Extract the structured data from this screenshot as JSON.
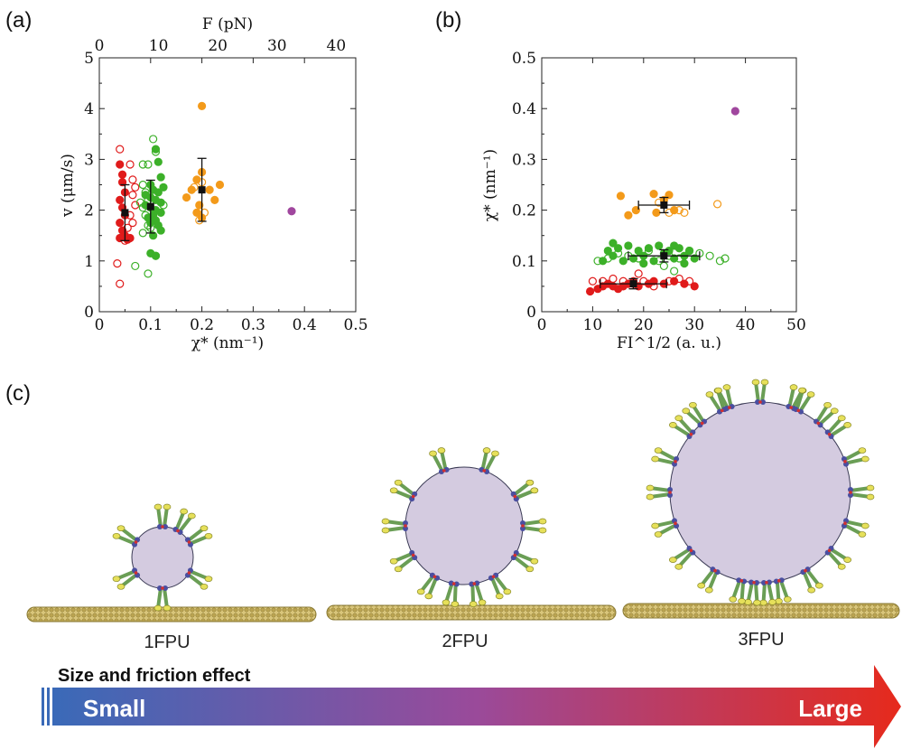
{
  "panels": {
    "a_label": "(a)",
    "b_label": "(b)",
    "c_label": "(c)"
  },
  "chart_data": [
    {
      "type": "scatter",
      "panel": "(a)",
      "xlabel": "χ* (nm⁻¹)",
      "ylabel": "v (μm/s)",
      "top_xlabel": "F (pN)",
      "xlim": [
        0,
        0.5
      ],
      "ylim": [
        0,
        5
      ],
      "top_xlim": [
        0,
        43.3
      ],
      "x_ticks": [
        "0",
        "0.1",
        "0.2",
        "0.3",
        "0.4",
        "0.5"
      ],
      "y_ticks": [
        "0",
        "1",
        "2",
        "3",
        "4",
        "5"
      ],
      "top_x_ticks": [
        "0",
        "10",
        "20",
        "30",
        "40"
      ],
      "series": [
        {
          "color": "#e01b1b",
          "filled": true,
          "points": [
            [
              0.04,
              2.9
            ],
            [
              0.045,
              2.55
            ],
            [
              0.05,
              2.35
            ],
            [
              0.04,
              2.2
            ],
            [
              0.045,
              2.05
            ],
            [
              0.05,
              1.9
            ],
            [
              0.04,
              1.75
            ],
            [
              0.045,
              1.6
            ],
            [
              0.05,
              1.5
            ],
            [
              0.04,
              1.45
            ],
            [
              0.055,
              1.42
            ],
            [
              0.06,
              1.45
            ],
            [
              0.045,
              2.7
            ]
          ]
        },
        {
          "color": "#e01b1b",
          "filled": false,
          "points": [
            [
              0.04,
              3.2
            ],
            [
              0.035,
              0.95
            ],
            [
              0.04,
              0.55
            ],
            [
              0.06,
              2.9
            ],
            [
              0.065,
              2.6
            ],
            [
              0.07,
              2.45
            ],
            [
              0.065,
              2.3
            ],
            [
              0.07,
              2.1
            ],
            [
              0.06,
              1.9
            ],
            [
              0.065,
              1.75
            ],
            [
              0.055,
              1.65
            ],
            [
              0.05,
              1.4
            ]
          ]
        },
        {
          "color": "#3cb029",
          "filled": true,
          "points": [
            [
              0.11,
              3.2
            ],
            [
              0.115,
              2.95
            ],
            [
              0.12,
              2.65
            ],
            [
              0.1,
              2.5
            ],
            [
              0.105,
              2.4
            ],
            [
              0.115,
              2.35
            ],
            [
              0.1,
              2.25
            ],
            [
              0.11,
              2.2
            ],
            [
              0.12,
              2.15
            ],
            [
              0.09,
              2.1
            ],
            [
              0.1,
              2.05
            ],
            [
              0.11,
              2.0
            ],
            [
              0.12,
              1.95
            ],
            [
              0.105,
              1.9
            ],
            [
              0.095,
              1.85
            ],
            [
              0.11,
              1.8
            ],
            [
              0.1,
              1.75
            ],
            [
              0.115,
              1.7
            ],
            [
              0.12,
              1.6
            ],
            [
              0.105,
              1.5
            ],
            [
              0.1,
              1.15
            ],
            [
              0.11,
              1.1
            ],
            [
              0.125,
              2.45
            ],
            [
              0.09,
              2.3
            ]
          ]
        },
        {
          "color": "#3cb029",
          "filled": false,
          "points": [
            [
              0.105,
              3.4
            ],
            [
              0.11,
              3.15
            ],
            [
              0.085,
              2.9
            ],
            [
              0.095,
              2.9
            ],
            [
              0.085,
              2.5
            ],
            [
              0.09,
              2.35
            ],
            [
              0.095,
              2.2
            ],
            [
              0.085,
              2.05
            ],
            [
              0.09,
              1.9
            ],
            [
              0.095,
              1.7
            ],
            [
              0.1,
              1.65
            ],
            [
              0.085,
              1.55
            ],
            [
              0.07,
              0.9
            ],
            [
              0.095,
              0.75
            ],
            [
              0.11,
              1.1
            ],
            [
              0.08,
              2.15
            ],
            [
              0.125,
              2.1
            ]
          ]
        },
        {
          "color": "#f39a1a",
          "filled": true,
          "points": [
            [
              0.2,
              4.05
            ],
            [
              0.2,
              2.75
            ],
            [
              0.19,
              2.6
            ],
            [
              0.235,
              2.5
            ],
            [
              0.18,
              2.4
            ],
            [
              0.215,
              2.4
            ],
            [
              0.17,
              2.25
            ],
            [
              0.225,
              2.2
            ],
            [
              0.195,
              2.1
            ],
            [
              0.19,
              1.95
            ],
            [
              0.2,
              1.85
            ]
          ]
        },
        {
          "color": "#f39a1a",
          "filled": false,
          "points": [
            [
              0.2,
              2.55
            ],
            [
              0.185,
              2.45
            ],
            [
              0.195,
              1.8
            ],
            [
              0.205,
              1.95
            ]
          ]
        },
        {
          "color": "#a0479e",
          "filled": true,
          "points": [
            [
              0.375,
              1.98
            ]
          ]
        }
      ],
      "means": [
        {
          "x": 0.05,
          "y": 1.95,
          "yerr": 0.55
        },
        {
          "x": 0.1,
          "y": 2.07,
          "yerr": 0.52
        },
        {
          "x": 0.2,
          "y": 2.4,
          "yerr": 0.62
        }
      ]
    },
    {
      "type": "scatter",
      "panel": "(b)",
      "xlabel": "FI^1/2 (a. u.)",
      "ylabel": "χ* (nm⁻¹)",
      "xlim": [
        0,
        50
      ],
      "ylim": [
        0,
        0.5
      ],
      "x_ticks": [
        "0",
        "10",
        "20",
        "30",
        "40",
        "50"
      ],
      "y_ticks": [
        "0",
        "0.1",
        "0.2",
        "0.3",
        "0.4",
        "0.5"
      ],
      "series": [
        {
          "color": "#e01b1b",
          "filled": true,
          "points": [
            [
              9.5,
              0.04
            ],
            [
              11,
              0.045
            ],
            [
              12,
              0.05
            ],
            [
              13,
              0.055
            ],
            [
              14,
              0.05
            ],
            [
              15,
              0.045
            ],
            [
              16,
              0.05
            ],
            [
              17,
              0.055
            ],
            [
              18,
              0.06
            ],
            [
              19,
              0.05
            ],
            [
              21,
              0.055
            ],
            [
              22,
              0.06
            ],
            [
              24,
              0.055
            ],
            [
              26,
              0.06
            ],
            [
              28,
              0.055
            ],
            [
              30,
              0.05
            ]
          ]
        },
        {
          "color": "#e01b1b",
          "filled": false,
          "points": [
            [
              10,
              0.06
            ],
            [
              12,
              0.06
            ],
            [
              14,
              0.065
            ],
            [
              16,
              0.06
            ],
            [
              18,
              0.055
            ],
            [
              19,
              0.075
            ],
            [
              20,
              0.06
            ],
            [
              22,
              0.05
            ],
            [
              25,
              0.06
            ],
            [
              27,
              0.065
            ],
            [
              29,
              0.06
            ]
          ]
        },
        {
          "color": "#3cb029",
          "filled": true,
          "points": [
            [
              12,
              0.1
            ],
            [
              13,
              0.12
            ],
            [
              14,
              0.11
            ],
            [
              15,
              0.125
            ],
            [
              16,
              0.1
            ],
            [
              17,
              0.13
            ],
            [
              18,
              0.105
            ],
            [
              19,
              0.12
            ],
            [
              20,
              0.11
            ],
            [
              21,
              0.125
            ],
            [
              22,
              0.1
            ],
            [
              23,
              0.13
            ],
            [
              24,
              0.115
            ],
            [
              25,
              0.12
            ],
            [
              26,
              0.105
            ],
            [
              27,
              0.125
            ],
            [
              28,
              0.11
            ],
            [
              29,
              0.12
            ],
            [
              30,
              0.105
            ],
            [
              14,
              0.135
            ],
            [
              26,
              0.13
            ],
            [
              20,
              0.095
            ],
            [
              28,
              0.095
            ]
          ]
        },
        {
          "color": "#3cb029",
          "filled": false,
          "points": [
            [
              11,
              0.1
            ],
            [
              13,
              0.105
            ],
            [
              15,
              0.115
            ],
            [
              17,
              0.11
            ],
            [
              19,
              0.105
            ],
            [
              21,
              0.12
            ],
            [
              23,
              0.1
            ],
            [
              25,
              0.11
            ],
            [
              27,
              0.105
            ],
            [
              29,
              0.12
            ],
            [
              31,
              0.115
            ],
            [
              33,
              0.11
            ],
            [
              35,
              0.1
            ],
            [
              36,
              0.105
            ],
            [
              26,
              0.08
            ],
            [
              24,
              0.09
            ]
          ]
        },
        {
          "color": "#f39a1a",
          "filled": true,
          "points": [
            [
              15.5,
              0.228
            ],
            [
              17,
              0.19
            ],
            [
              18.5,
              0.2
            ],
            [
              22,
              0.232
            ],
            [
              24,
              0.22
            ],
            [
              25,
              0.23
            ],
            [
              26,
              0.2
            ],
            [
              22.5,
              0.195
            ]
          ]
        },
        {
          "color": "#f39a1a",
          "filled": false,
          "points": [
            [
              23,
              0.215
            ],
            [
              25,
              0.195
            ],
            [
              27,
              0.2
            ],
            [
              28,
              0.195
            ],
            [
              34.5,
              0.212
            ]
          ]
        },
        {
          "color": "#a0479e",
          "filled": true,
          "points": [
            [
              38,
              0.395
            ]
          ]
        }
      ],
      "means": [
        {
          "x": 18,
          "y": 0.055,
          "xerr": 6.5,
          "yerr": 0.01
        },
        {
          "x": 24,
          "y": 0.11,
          "xerr": 7,
          "yerr": 0.012
        },
        {
          "x": 24,
          "y": 0.21,
          "xerr": 5,
          "yerr": 0.015
        }
      ]
    }
  ],
  "diagram": {
    "labels": [
      "1FPU",
      "2FPU",
      "3FPU"
    ],
    "arrow_title": "Size and friction effect",
    "arrow_left": "Small",
    "arrow_right": "Large",
    "colors": {
      "vesicle": "#d4cbe0",
      "vesicle_stroke": "#3b3b55",
      "tube": "#cdb86a",
      "tube_stroke": "#8a7a34",
      "stalk": "#6a9e55",
      "head": "#e6e05a",
      "base": "#4a4fa0",
      "red": "#d23030",
      "arrow_start": "#3a6ab8",
      "arrow_end": "#e62a1c"
    }
  }
}
